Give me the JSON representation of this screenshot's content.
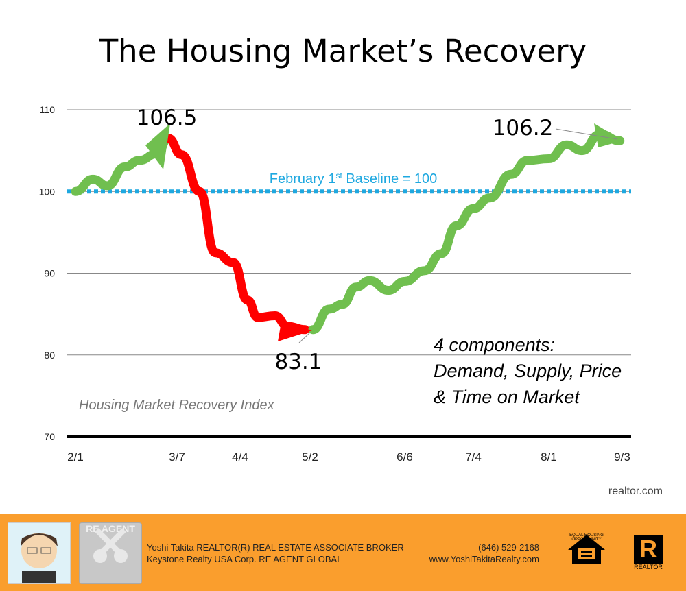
{
  "title": "The Housing Market’s Recovery",
  "source": "realtor.com",
  "chart_data": {
    "type": "line",
    "title": "The Housing Market’s Recovery",
    "ylim": [
      70,
      110
    ],
    "yticks": [
      "70",
      "80",
      "90",
      "100",
      "110"
    ],
    "xticks": [
      "2/1",
      "3/7",
      "4/4",
      "5/2",
      "6/6",
      "7/4",
      "8/1",
      "9/3"
    ],
    "grid": true,
    "series": [
      {
        "color": "#70BF4F",
        "x": [
          "2/1",
          "2/7",
          "2/12",
          "2/18",
          "2/23",
          "2/29",
          "3/4"
        ],
        "y": [
          100,
          101.5,
          100.7,
          103,
          103.8,
          104.6,
          106.5
        ]
      },
      {
        "color": "#FF0000",
        "x": [
          "3/4",
          "3/9",
          "3/17",
          "3/24",
          "4/1",
          "4/7",
          "4/11",
          "4/18",
          "4/23",
          "4/30"
        ],
        "y": [
          106.5,
          104.5,
          100,
          92.5,
          91.3,
          86.7,
          84.6,
          84.8,
          83.5,
          83.1
        ]
      },
      {
        "color": "#70BF4F",
        "x": [
          "5/3",
          "5/9",
          "5/14",
          "5/19",
          "5/24",
          "5/31",
          "6/6",
          "6/14",
          "6/21",
          "6/27",
          "7/4",
          "7/10",
          "7/18",
          "7/24",
          "8/1",
          "8/9",
          "8/16",
          "8/24",
          "9/2"
        ],
        "y": [
          83.1,
          85.6,
          86.2,
          88.3,
          89.1,
          87.9,
          89,
          90.3,
          92.4,
          95.8,
          97.9,
          99.2,
          102.1,
          103.8,
          104,
          105.7,
          105,
          107,
          106.2
        ]
      }
    ],
    "baseline": {
      "value": 100,
      "label_main": "February 1",
      "label_sup": "st",
      "label_rest": " Baseline = 100",
      "color": "#1EA8E0"
    },
    "annotations": {
      "peak": "106.5",
      "trough": "83.1",
      "latest": "106.2"
    },
    "series_label": "Housing Market Recovery Index",
    "note": [
      "4 components:",
      "Demand, Supply, Price",
      "& Time on Market"
    ]
  },
  "footer": {
    "line1": "Yoshi Takita REALTOR(R) REAL ESTATE ASSOCIATE BROKER",
    "line2": "Keystone Realty USA Corp.  RE AGENT GLOBAL",
    "phone": "(646) 529-2168",
    "website": "www.YoshiTakitaRealty.com",
    "logo_reagent": "RE AGENT",
    "logo_eho": "EQUAL HOUSING OPPORTUNITY",
    "logo_realtor": "REALTOR"
  }
}
